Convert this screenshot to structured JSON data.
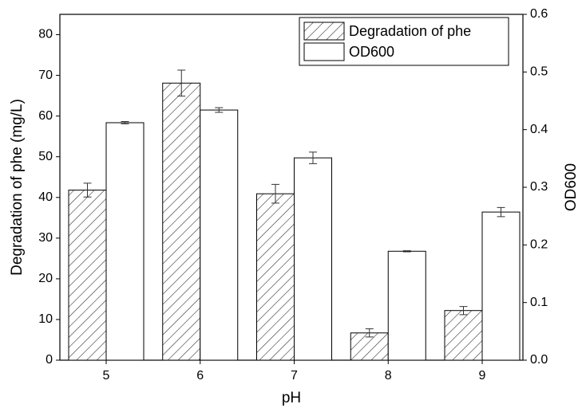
{
  "chart_data": {
    "type": "bar",
    "x_label": "pH",
    "y_label": "Degradation of phe (mg/L)",
    "y2_label": "OD600",
    "categories": [
      "5",
      "6",
      "7",
      "8",
      "9"
    ],
    "series": [
      {
        "name": "Degradation of phe",
        "color": "#000000",
        "pattern": "hatch",
        "values": [
          41.8,
          68.1,
          40.9,
          6.7,
          12.2
        ],
        "errors": [
          1.7,
          3.2,
          2.3,
          1.0,
          1.0
        ]
      },
      {
        "name": "OD600",
        "color": "#000000",
        "pattern": "none",
        "axis": "y2",
        "values": [
          0.412,
          0.434,
          0.351,
          0.189,
          0.257
        ],
        "errors": [
          0.002,
          0.004,
          0.01,
          0.001,
          0.008
        ]
      }
    ],
    "ylim": [
      0,
      85
    ],
    "yticks": [
      0,
      10,
      20,
      30,
      40,
      50,
      60,
      70,
      80
    ],
    "y2lim": [
      0,
      0.6
    ],
    "y2ticks": [
      {
        "value": 0,
        "label": "0.0"
      },
      0.1,
      0.2,
      0.3,
      0.4,
      0.5,
      0.6
    ],
    "legend": "top-right"
  }
}
